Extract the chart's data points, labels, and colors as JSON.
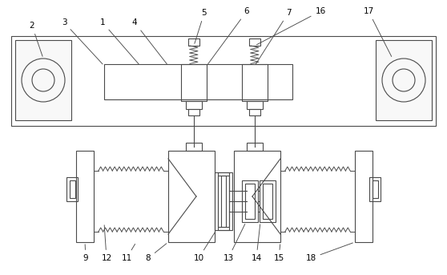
{
  "bg_color": "#ffffff",
  "line_color": "#4a4a4a",
  "lw": 0.8,
  "fig_width": 5.58,
  "fig_height": 3.43,
  "dpi": 100
}
